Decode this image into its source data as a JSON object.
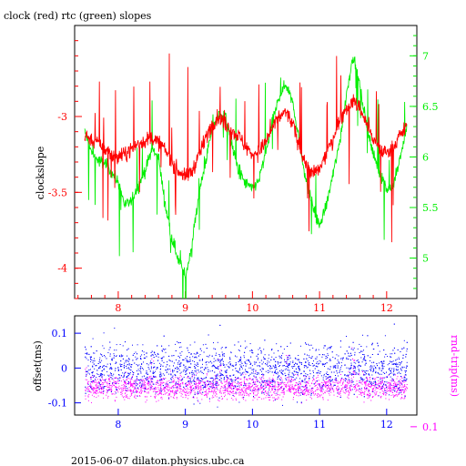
{
  "title": "clock (red) rtc (green) slopes",
  "footer": "2015-06-07  dilaton.physics.ubc.ca",
  "colors": {
    "frame": "#000000",
    "red": "#ff0000",
    "green": "#00ee00",
    "blue": "#0000ff",
    "magenta": "#ff00ff"
  },
  "chart_data": [
    {
      "type": "line",
      "panel": "top",
      "ylabel": "clockslope",
      "x_ticks": [
        "8",
        "9",
        "10",
        "11",
        "12"
      ],
      "xlim": [
        7.35,
        12.45
      ],
      "y_left_ticks": [
        "-3",
        "-3.5",
        "-4"
      ],
      "y_left_tick_values": [
        -3,
        -3.5,
        -4
      ],
      "ylim_left": [
        -4.2,
        -2.4
      ],
      "y_right_ticks": [
        "7",
        "6.5",
        "6",
        "5.5",
        "5"
      ],
      "y_right_tick_values": [
        7,
        6.5,
        6,
        5.5,
        5
      ],
      "ylim_right": [
        4.6,
        7.3
      ],
      "series": [
        {
          "color": "red",
          "axis": "left",
          "x": [
            7.5,
            7.6,
            7.7,
            7.8,
            7.9,
            8.0,
            8.1,
            8.2,
            8.3,
            8.4,
            8.5,
            8.6,
            8.7,
            8.8,
            8.9,
            9.0,
            9.1,
            9.2,
            9.3,
            9.4,
            9.5,
            9.6,
            9.7,
            9.8,
            9.9,
            10.0,
            10.1,
            10.2,
            10.3,
            10.4,
            10.5,
            10.6,
            10.7,
            10.8,
            10.9,
            11.0,
            11.1,
            11.2,
            11.3,
            11.4,
            11.5,
            11.6,
            11.7,
            11.8,
            11.9,
            12.0,
            12.1,
            12.2,
            12.3
          ],
          "y": [
            -3.12,
            -3.15,
            -3.18,
            -3.22,
            -3.25,
            -3.27,
            -3.25,
            -3.21,
            -3.18,
            -3.16,
            -3.14,
            -3.17,
            -3.22,
            -3.3,
            -3.36,
            -3.4,
            -3.36,
            -3.26,
            -3.14,
            -3.05,
            -3.0,
            -3.05,
            -3.1,
            -3.13,
            -3.2,
            -3.25,
            -3.23,
            -3.17,
            -3.07,
            -3.0,
            -2.97,
            -3.05,
            -3.2,
            -3.32,
            -3.38,
            -3.35,
            -3.25,
            -3.14,
            -3.02,
            -2.94,
            -2.9,
            -2.94,
            -3.05,
            -3.15,
            -3.22,
            -3.24,
            -3.2,
            -3.12,
            -3.07
          ]
        },
        {
          "color": "green",
          "axis": "right",
          "x": [
            7.5,
            7.6,
            7.7,
            7.8,
            7.9,
            8.0,
            8.1,
            8.2,
            8.3,
            8.4,
            8.5,
            8.6,
            8.7,
            8.8,
            8.9,
            9.0,
            9.1,
            9.2,
            9.3,
            9.4,
            9.5,
            9.6,
            9.7,
            9.8,
            9.9,
            10.0,
            10.1,
            10.2,
            10.3,
            10.4,
            10.5,
            10.6,
            10.7,
            10.8,
            10.9,
            11.0,
            11.1,
            11.2,
            11.3,
            11.4,
            11.5,
            11.6,
            11.7,
            11.8,
            11.9,
            12.0,
            12.1,
            12.2,
            12.3
          ],
          "y": [
            6.25,
            6.05,
            5.96,
            5.94,
            5.85,
            5.75,
            5.52,
            5.56,
            5.72,
            5.86,
            6.08,
            6.0,
            5.52,
            5.2,
            4.98,
            4.8,
            5.15,
            5.62,
            5.95,
            6.28,
            6.42,
            6.4,
            6.1,
            5.84,
            5.74,
            5.68,
            5.78,
            6.05,
            6.35,
            6.6,
            6.72,
            6.55,
            6.15,
            5.76,
            5.5,
            5.32,
            5.52,
            5.82,
            6.15,
            6.62,
            7.0,
            6.7,
            6.32,
            6.02,
            5.85,
            5.68,
            5.72,
            5.98,
            6.3
          ]
        }
      ]
    },
    {
      "type": "scatter",
      "panel": "bottom",
      "ylabel_left": "offset(ms)",
      "ylabel_right": "rnd-trip(ms)",
      "x_ticks": [
        "8",
        "9",
        "10",
        "11",
        "12"
      ],
      "xlim": [
        7.35,
        12.45
      ],
      "y_left_ticks": [
        "0.1",
        "0",
        "-0.1"
      ],
      "y_left_tick_values": [
        0.1,
        0,
        -0.1
      ],
      "ylim_left": [
        -0.135,
        0.15
      ],
      "y_right_ticks": [
        "0.1"
      ],
      "y_right_tick_values": [
        0.1
      ],
      "ylim_right": [
        0.0,
        0.35
      ],
      "series": [
        {
          "color": "blue",
          "axis": "left",
          "center": 0.0,
          "spread": 0.035
        },
        {
          "color": "magenta",
          "axis": "right",
          "center": 0.17,
          "spread": 0.02
        }
      ]
    }
  ]
}
